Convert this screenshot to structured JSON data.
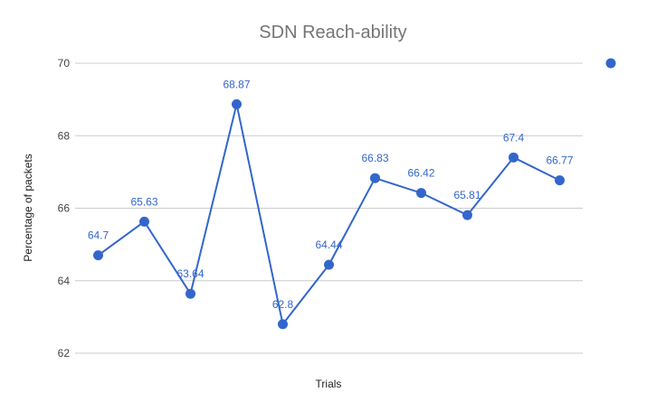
{
  "chart_data": {
    "type": "line",
    "title": "SDN Reach-ability",
    "xlabel": "Trials",
    "ylabel": "Percentage of packets",
    "ylim": [
      62,
      70
    ],
    "yticks": [
      62,
      64,
      66,
      68,
      70
    ],
    "x": [
      1,
      2,
      3,
      4,
      5,
      6,
      7,
      8,
      9,
      10,
      11
    ],
    "series": [
      {
        "values": [
          64.7,
          65.63,
          63.64,
          68.87,
          62.8,
          64.44,
          66.83,
          66.42,
          65.81,
          67.4,
          66.77
        ],
        "labels": [
          "64.7",
          "65.63",
          "63.64",
          "68.87",
          "62.8",
          "64.44",
          "66.83",
          "66.42",
          "65.81",
          "67.4",
          "66.77"
        ],
        "color": "#3366cc"
      }
    ],
    "grid": true,
    "legend": "right"
  }
}
